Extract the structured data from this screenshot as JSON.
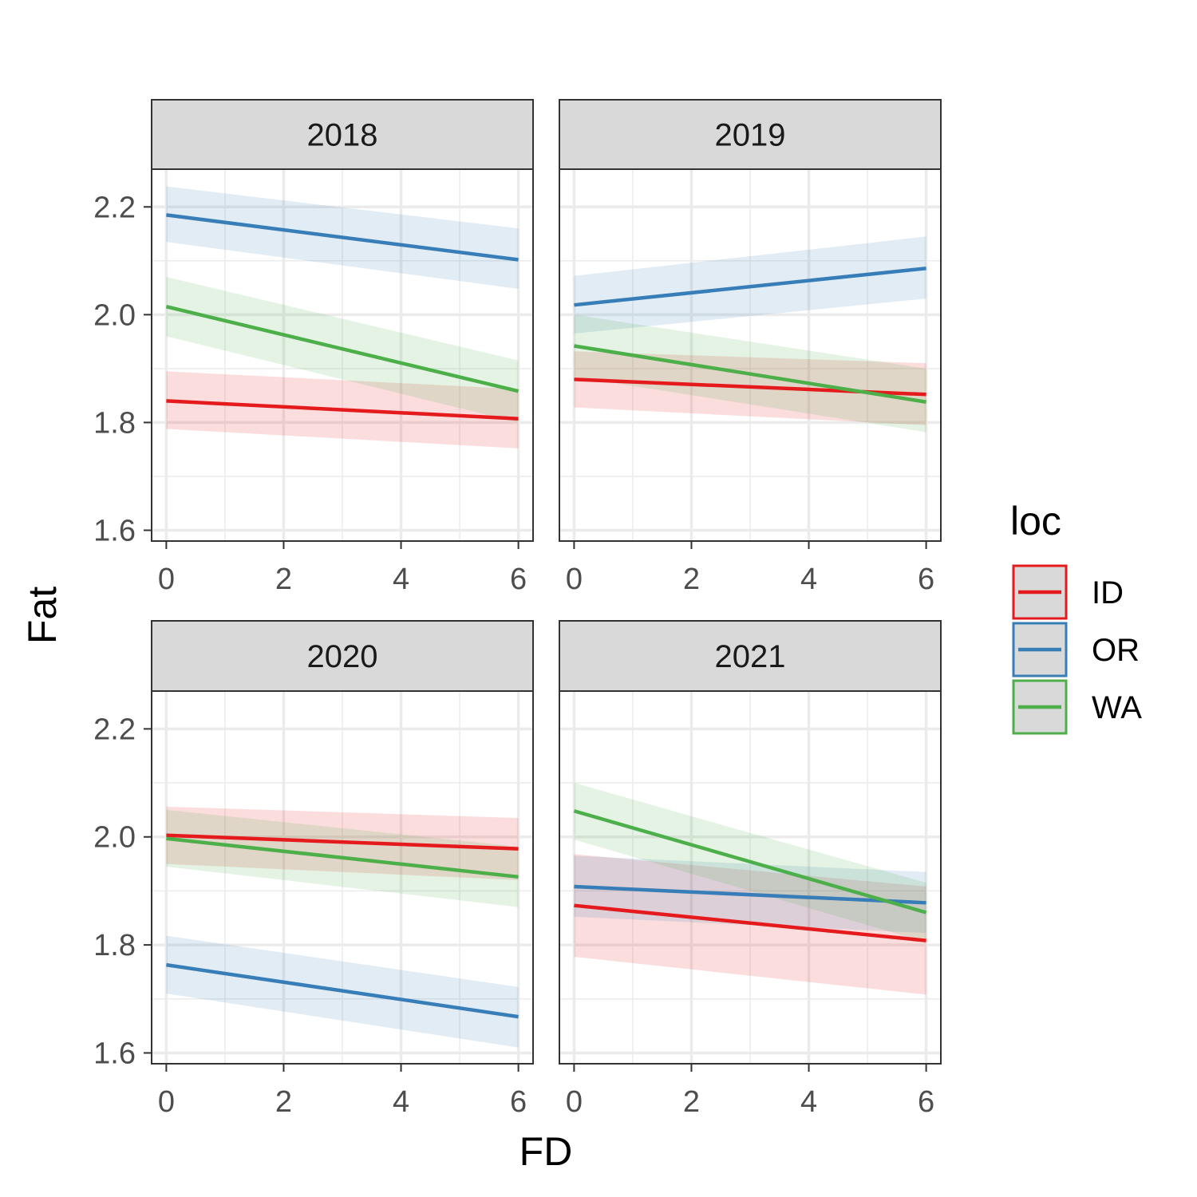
{
  "chart_data": {
    "type": "line",
    "xlabel": "FD",
    "ylabel": "Fat",
    "xlim": [
      -0.25,
      6.25
    ],
    "ylim": [
      1.58,
      2.27
    ],
    "x_ticks": [
      "0",
      "2",
      "4",
      "6"
    ],
    "y_ticks": [
      "1.6",
      "1.8",
      "2.0",
      "2.2"
    ],
    "grid": true,
    "legend": {
      "title": "loc",
      "position": "right",
      "entries": [
        "ID",
        "OR",
        "WA"
      ]
    },
    "colors": {
      "ID": "#e41a1c",
      "OR": "#377eb8",
      "WA": "#4daf4a"
    },
    "panels": [
      {
        "label": "2018",
        "series": [
          {
            "name": "ID",
            "x": [
              0,
              6
            ],
            "y": [
              1.84,
              1.807
            ],
            "lower": [
              1.788,
              1.752
            ],
            "upper": [
              1.895,
              1.862
            ]
          },
          {
            "name": "OR",
            "x": [
              0,
              6
            ],
            "y": [
              2.185,
              2.102
            ],
            "lower": [
              2.135,
              2.048
            ],
            "upper": [
              2.238,
              2.16
            ]
          },
          {
            "name": "WA",
            "x": [
              0,
              6
            ],
            "y": [
              2.015,
              1.858
            ],
            "lower": [
              1.96,
              1.8
            ],
            "upper": [
              2.07,
              1.915
            ]
          }
        ]
      },
      {
        "label": "2019",
        "series": [
          {
            "name": "ID",
            "x": [
              0,
              6
            ],
            "y": [
              1.88,
              1.852
            ],
            "lower": [
              1.828,
              1.795
            ],
            "upper": [
              1.932,
              1.91
            ]
          },
          {
            "name": "OR",
            "x": [
              0,
              6
            ],
            "y": [
              2.018,
              2.086
            ],
            "lower": [
              1.965,
              2.03
            ],
            "upper": [
              2.072,
              2.145
            ]
          },
          {
            "name": "WA",
            "x": [
              0,
              6
            ],
            "y": [
              1.942,
              1.838
            ],
            "lower": [
              1.885,
              1.782
            ],
            "upper": [
              2.0,
              1.9
            ]
          }
        ]
      },
      {
        "label": "2020",
        "series": [
          {
            "name": "ID",
            "x": [
              0,
              6
            ],
            "y": [
              2.003,
              1.978
            ],
            "lower": [
              1.95,
              1.92
            ],
            "upper": [
              2.056,
              2.035
            ]
          },
          {
            "name": "OR",
            "x": [
              0,
              6
            ],
            "y": [
              1.763,
              1.667
            ],
            "lower": [
              1.71,
              1.61
            ],
            "upper": [
              1.817,
              1.722
            ]
          },
          {
            "name": "WA",
            "x": [
              0,
              6
            ],
            "y": [
              1.997,
              1.926
            ],
            "lower": [
              1.945,
              1.87
            ],
            "upper": [
              2.05,
              1.982
            ]
          }
        ]
      },
      {
        "label": "2021",
        "series": [
          {
            "name": "ID",
            "x": [
              0,
              6
            ],
            "y": [
              1.873,
              1.808
            ],
            "lower": [
              1.778,
              1.708
            ],
            "upper": [
              1.968,
              1.908
            ]
          },
          {
            "name": "OR",
            "x": [
              0,
              6
            ],
            "y": [
              1.908,
              1.878
            ],
            "lower": [
              1.852,
              1.822
            ],
            "upper": [
              1.965,
              1.935
            ]
          },
          {
            "name": "WA",
            "x": [
              0,
              6
            ],
            "y": [
              2.048,
              1.86
            ],
            "lower": [
              1.995,
              1.805
            ],
            "upper": [
              2.1,
              1.915
            ]
          }
        ]
      }
    ]
  }
}
